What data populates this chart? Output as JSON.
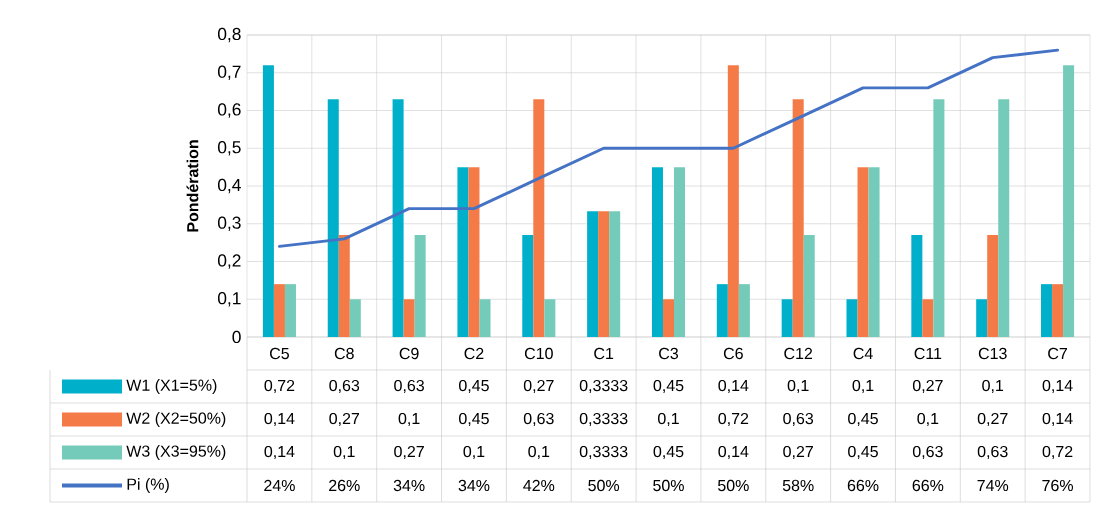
{
  "chart_data": {
    "type": "bar",
    "ylabel": "Pondération",
    "categories": [
      "C5",
      "C8",
      "C9",
      "C2",
      "C10",
      "C1",
      "C3",
      "C6",
      "C12",
      "C4",
      "C11",
      "C13",
      "C7"
    ],
    "ylim": [
      0,
      0.8
    ],
    "yticks": [
      {
        "value": 0,
        "label": "0"
      },
      {
        "value": 0.1,
        "label": "0,1"
      },
      {
        "value": 0.2,
        "label": "0,2"
      },
      {
        "value": 0.3,
        "label": "0,3"
      },
      {
        "value": 0.4,
        "label": "0,4"
      },
      {
        "value": 0.5,
        "label": "0,5"
      },
      {
        "value": 0.6,
        "label": "0,6"
      },
      {
        "value": 0.7,
        "label": "0,7"
      },
      {
        "value": 0.8,
        "label": "0,8"
      }
    ],
    "grid": true,
    "legend": "bottom",
    "series": [
      {
        "name": "W1 (X1=5%)",
        "color": "#00b0ca",
        "values": [
          0.72,
          0.63,
          0.63,
          0.45,
          0.27,
          0.3333,
          0.45,
          0.14,
          0.1,
          0.1,
          0.27,
          0.1,
          0.14
        ],
        "value_labels": [
          "0,72",
          "0,63",
          "0,63",
          "0,45",
          "0,27",
          "0,3333",
          "0,45",
          "0,14",
          "0,1",
          "0,1",
          "0,27",
          "0,1",
          "0,14"
        ]
      },
      {
        "name": "W2 (X2=50%)",
        "color": "#f47b47",
        "values": [
          0.14,
          0.27,
          0.1,
          0.45,
          0.63,
          0.3333,
          0.1,
          0.72,
          0.63,
          0.45,
          0.1,
          0.27,
          0.14
        ],
        "value_labels": [
          "0,14",
          "0,27",
          "0,1",
          "0,45",
          "0,63",
          "0,3333",
          "0,1",
          "0,72",
          "0,63",
          "0,45",
          "0,1",
          "0,27",
          "0,14"
        ]
      },
      {
        "name": "W3 (X3=95%)",
        "color": "#74cbb9",
        "values": [
          0.14,
          0.1,
          0.27,
          0.1,
          0.1,
          0.3333,
          0.45,
          0.14,
          0.27,
          0.45,
          0.63,
          0.63,
          0.72
        ],
        "value_labels": [
          "0,14",
          "0,1",
          "0,27",
          "0,1",
          "0,1",
          "0,3333",
          "0,45",
          "0,14",
          "0,27",
          "0,45",
          "0,63",
          "0,63",
          "0,72"
        ]
      },
      {
        "name": "Pi (%)",
        "type": "line",
        "color": "#4472c4",
        "values": [
          0.24,
          0.26,
          0.34,
          0.34,
          0.42,
          0.5,
          0.5,
          0.5,
          0.58,
          0.66,
          0.66,
          0.74,
          0.76
        ],
        "value_labels": [
          "24%",
          "26%",
          "34%",
          "34%",
          "42%",
          "50%",
          "50%",
          "50%",
          "58%",
          "66%",
          "66%",
          "74%",
          "76%"
        ]
      }
    ]
  }
}
